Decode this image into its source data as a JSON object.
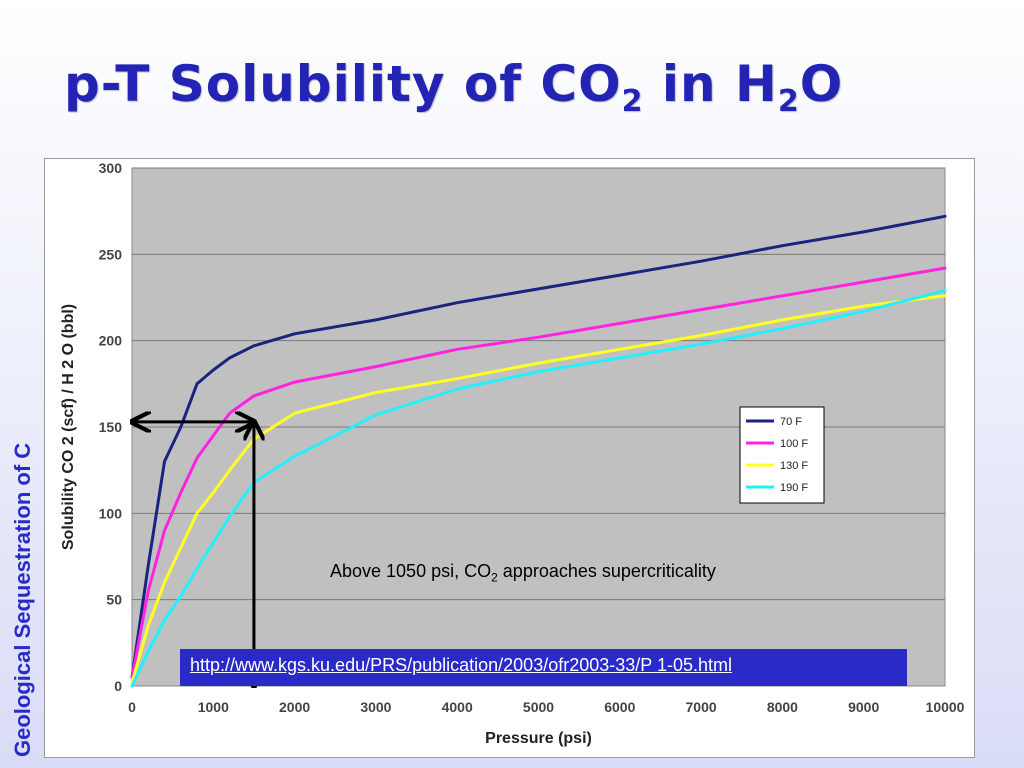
{
  "slide": {
    "title": {
      "main": "p-T Solubility of CO",
      "sub1": "2",
      "mid": " in H",
      "sub2": "2",
      "end": "O"
    },
    "side_label": "Geological Sequestration of C",
    "annotation": {
      "pre": "Above 1050 psi, CO",
      "sub": "2",
      "post": " approaches supercriticality"
    },
    "source_url": "http://www.kgs.ku.edu/PRS/publication/2003/ofr2003-33/P 1-05.html",
    "colors": {
      "title": "#2323b4",
      "side_label": "#2a2ac8",
      "source_box": "#2a2ac8",
      "plot_bg": "#c0c0c0"
    }
  },
  "chart_data": {
    "type": "line",
    "title": "",
    "xlabel": "Pressure (psi)",
    "ylabel": "Solubility CO 2 (scf) / H 2 O (bbl)",
    "xlim": [
      0,
      10000
    ],
    "ylim": [
      0,
      300
    ],
    "x_ticks": [
      "0",
      "1000",
      "2000",
      "3000",
      "4000",
      "5000",
      "6000",
      "7000",
      "8000",
      "9000",
      "10000"
    ],
    "y_ticks": [
      "0",
      "50",
      "100",
      "150",
      "200",
      "250",
      "300"
    ],
    "grid": "horizontal",
    "legend_position": "right",
    "series": [
      {
        "name": "70 F",
        "color": "#1a237e",
        "x": [
          0,
          200,
          400,
          600,
          800,
          1000,
          1200,
          1500,
          2000,
          3000,
          4000,
          5000,
          6000,
          7000,
          8000,
          9000,
          10000
        ],
        "y": [
          5,
          70,
          130,
          150,
          175,
          183,
          190,
          197,
          204,
          212,
          222,
          230,
          238,
          246,
          255,
          263,
          272
        ]
      },
      {
        "name": "100 F",
        "color": "#ff22e0",
        "x": [
          0,
          200,
          400,
          600,
          800,
          1000,
          1200,
          1500,
          2000,
          3000,
          4000,
          5000,
          6000,
          7000,
          8000,
          9000,
          10000
        ],
        "y": [
          5,
          55,
          90,
          112,
          132,
          145,
          158,
          168,
          176,
          185,
          195,
          202,
          210,
          218,
          226,
          234,
          242
        ]
      },
      {
        "name": "130 F",
        "color": "#ffff22",
        "x": [
          0,
          200,
          400,
          600,
          800,
          1000,
          1200,
          1500,
          2000,
          3000,
          4000,
          5000,
          6000,
          7000,
          8000,
          9000,
          10000
        ],
        "y": [
          2,
          35,
          60,
          80,
          100,
          112,
          125,
          143,
          158,
          170,
          178,
          187,
          195,
          203,
          212,
          220,
          226
        ]
      },
      {
        "name": "190 F",
        "color": "#22f0ff",
        "x": [
          0,
          200,
          400,
          600,
          800,
          1000,
          1200,
          1500,
          2000,
          3000,
          4000,
          5000,
          6000,
          7000,
          8000,
          9000,
          10000
        ],
        "y": [
          0,
          20,
          38,
          52,
          68,
          83,
          98,
          118,
          133,
          157,
          172,
          182,
          190,
          198,
          207,
          217,
          229
        ]
      }
    ],
    "arrows": [
      {
        "from": [
          0,
          153
        ],
        "to": [
          1500,
          153
        ],
        "style": "double-headed"
      },
      {
        "from": [
          1500,
          153
        ],
        "to": [
          1500,
          0
        ],
        "style": "double-headed"
      }
    ]
  }
}
